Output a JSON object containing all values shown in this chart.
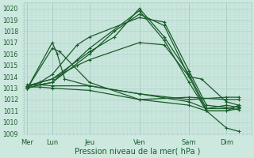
{
  "xlabel": "Pression niveau de la mer( hPa )",
  "background_color": "#cce8df",
  "plot_bg_color": "#cce8df",
  "grid_major_color": "#a8cfc4",
  "grid_minor_color": "#b8d8cf",
  "line_color": "#1a5c2a",
  "ylim": [
    1009,
    1020.5
  ],
  "yticks": [
    1009,
    1010,
    1011,
    1012,
    1013,
    1014,
    1015,
    1016,
    1017,
    1018,
    1019,
    1020
  ],
  "xtick_labels": [
    "Mer",
    "Lun",
    "Jeu",
    "Ven",
    "Sam",
    "Dim"
  ],
  "xtick_positions": [
    0.0,
    1.0,
    2.5,
    4.5,
    6.5,
    8.0
  ],
  "xlim": [
    -0.15,
    9.0
  ],
  "day_lines": [
    0.0,
    1.0,
    2.5,
    4.5,
    6.5,
    8.0
  ],
  "lines": [
    [
      0.0,
      1013.2,
      0.5,
      1013.5,
      1.0,
      1013.8,
      2.5,
      1016.2,
      3.5,
      1017.5,
      4.5,
      1020.0,
      5.5,
      1017.5,
      6.5,
      1014.2,
      7.2,
      1011.2,
      8.0,
      1011.5,
      8.5,
      1011.3
    ],
    [
      0.0,
      1013.0,
      0.5,
      1013.3,
      1.0,
      1013.5,
      2.5,
      1016.0,
      3.5,
      1018.0,
      4.5,
      1019.5,
      5.5,
      1018.5,
      6.5,
      1014.0,
      7.2,
      1011.0,
      8.0,
      1011.0,
      8.5,
      1011.2
    ],
    [
      0.0,
      1013.1,
      0.5,
      1013.5,
      1.0,
      1014.2,
      2.0,
      1016.8,
      2.5,
      1017.5,
      4.5,
      1019.2,
      5.5,
      1018.8,
      6.5,
      1014.5,
      7.2,
      1011.5,
      8.0,
      1011.3,
      8.5,
      1011.1
    ],
    [
      0.0,
      1013.0,
      0.5,
      1013.3,
      1.0,
      1013.5,
      2.0,
      1015.5,
      2.5,
      1016.5,
      4.5,
      1019.8,
      5.5,
      1017.2,
      6.5,
      1013.5,
      7.2,
      1011.0,
      8.0,
      1009.5,
      8.5,
      1009.2
    ],
    [
      0.0,
      1013.2,
      0.5,
      1013.5,
      1.0,
      1013.8,
      2.0,
      1015.0,
      2.5,
      1015.5,
      4.5,
      1017.0,
      5.5,
      1016.8,
      6.5,
      1014.0,
      7.0,
      1013.8,
      8.0,
      1011.8,
      8.5,
      1011.5
    ],
    [
      0.0,
      1013.3,
      0.5,
      1013.3,
      1.0,
      1013.2,
      2.5,
      1013.2,
      4.5,
      1012.5,
      6.5,
      1011.8,
      7.2,
      1011.2,
      8.0,
      1011.2,
      8.5,
      1011.4
    ],
    [
      0.0,
      1013.1,
      0.5,
      1013.1,
      1.0,
      1013.0,
      2.5,
      1012.8,
      4.5,
      1012.0,
      6.5,
      1011.5,
      7.2,
      1011.0,
      8.0,
      1011.0,
      8.5,
      1011.5
    ],
    [
      0.0,
      1013.0,
      1.0,
      1016.5,
      1.3,
      1016.2,
      2.5,
      1013.5,
      4.5,
      1012.0,
      6.5,
      1012.2,
      8.0,
      1012.0,
      8.5,
      1012.0
    ],
    [
      0.0,
      1013.0,
      1.0,
      1017.0,
      1.2,
      1016.0,
      1.5,
      1013.8,
      2.5,
      1013.2,
      4.5,
      1012.5,
      6.5,
      1012.0,
      8.0,
      1012.2,
      8.5,
      1012.2
    ]
  ]
}
